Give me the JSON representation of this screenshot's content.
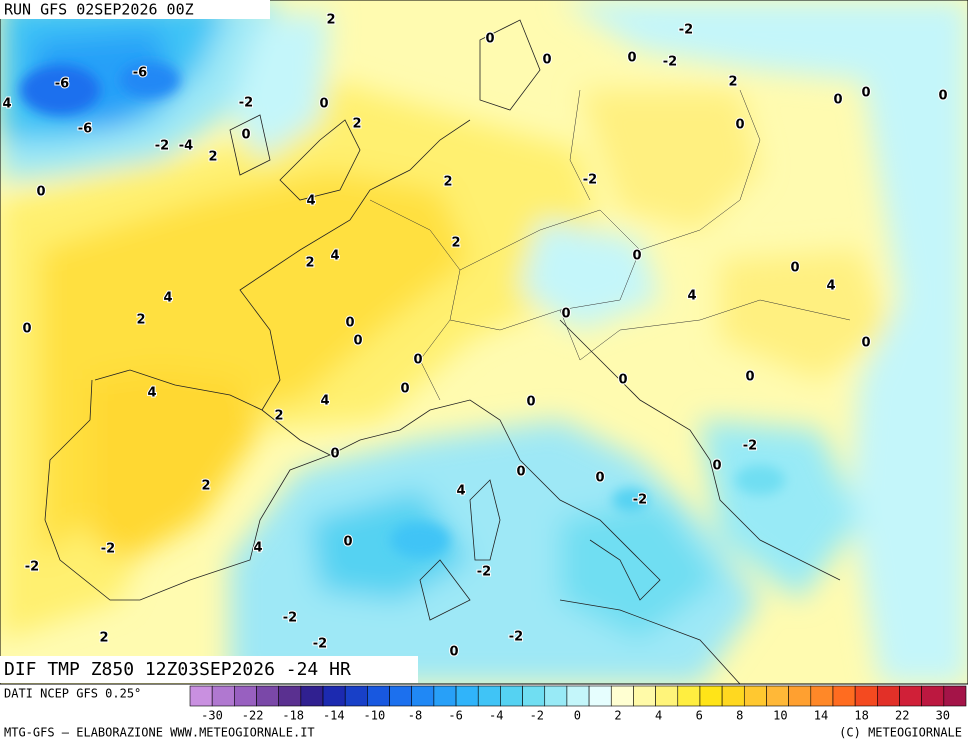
{
  "header": {
    "run": "RUN GFS 02SEP2026 00Z"
  },
  "map": {
    "title": "DIF TMP Z850 12Z03SEP2026 -24 HR",
    "labels": [
      "2",
      "-2",
      "0",
      "0",
      "-2",
      "-6",
      "-6",
      "4",
      "-6",
      "-2",
      "2",
      "0",
      "2",
      "-2",
      "-4",
      "0",
      "0",
      "2",
      "0",
      "0",
      "0",
      "0",
      "-2",
      "2",
      "4",
      "4",
      "2",
      "2",
      "4",
      "0",
      "0",
      "0",
      "0",
      "4",
      "4",
      "2",
      "0",
      "0",
      "0",
      "0",
      "0",
      "4",
      "2",
      "4",
      "0",
      "0",
      "0",
      "0",
      "-2",
      "0",
      "2",
      "0",
      "0",
      "-2",
      "-2",
      "0",
      "4",
      "4",
      "-2",
      "0",
      "-2",
      "-2",
      "2",
      "-2",
      "-2",
      "0"
    ]
  },
  "legend": {
    "source": "DATI NCEP GFS 0.25°",
    "colors": [
      "#c990e0",
      "#b078d0",
      "#9860c0",
      "#7a48a8",
      "#5a3090",
      "#302090",
      "#1c2ab0",
      "#1840c8",
      "#1858e0",
      "#1c70ee",
      "#2088f5",
      "#28a0f8",
      "#30b4fa",
      "#40c4f6",
      "#55d2f2",
      "#70def2",
      "#98eaf6",
      "#c4f6fa",
      "#e6fefe",
      "#ffffd2",
      "#fffaa8",
      "#fff47a",
      "#ffee40",
      "#ffe418",
      "#ffd820",
      "#ffc830",
      "#ffb838",
      "#ffa030",
      "#ff8828",
      "#ff6c20",
      "#f44a20",
      "#e23028",
      "#d02038",
      "#bc1840",
      "#a41448"
    ],
    "ticks": [
      "-30",
      "-22",
      "-18",
      "-14",
      "-10",
      "-8",
      "-6",
      "-4",
      "-2",
      "0",
      "2",
      "4",
      "6",
      "8",
      "10",
      "14",
      "18",
      "22",
      "30"
    ]
  },
  "footer": {
    "left": "MTG-GFS — ELABORAZIONE WWW.METEOGIORNALE.IT",
    "right": "(C) METEOGIORNALE"
  }
}
